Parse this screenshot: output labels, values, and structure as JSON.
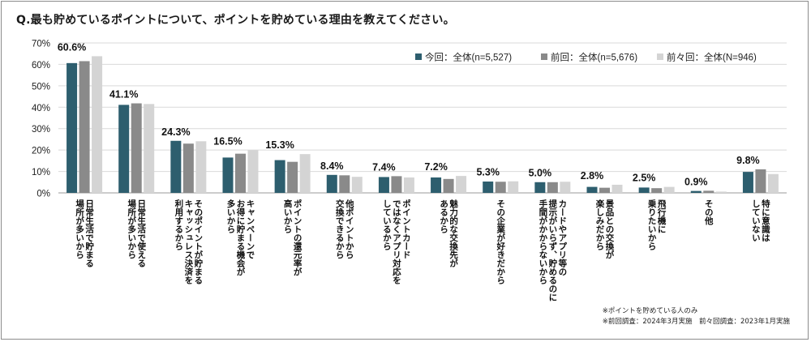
{
  "question": "Q.最も貯めているポイントについて、ポイントを貯めている理由を教えてください。",
  "notes": [
    "※ポイントを貯めている人のみ",
    "※前回調査：2024年3月実施　前々回調査：2023年1月実施"
  ],
  "colors": {
    "current": "#2d5e6e",
    "previous": "#8a8a8a",
    "before_previous": "#d4d4d4"
  },
  "chart_data": {
    "type": "bar",
    "title": "",
    "xlabel": "",
    "ylabel": "",
    "ylim": [
      0,
      70
    ],
    "yticks": [
      "0%",
      "10%",
      "20%",
      "30%",
      "40%",
      "50%",
      "60%",
      "70%"
    ],
    "grid": true,
    "legend_position": "top-right",
    "categories": [
      [
        "日常生活で貯まる",
        "場所が多いから"
      ],
      [
        "日常生活で使える",
        "場所が多いから"
      ],
      [
        "そのポイントが貯まる",
        "キャッシュレス決済を",
        "利用するから"
      ],
      [
        "キャンペーンで",
        "お得に貯まる機会が",
        "多いから"
      ],
      [
        "ポイントの還元率が",
        "高いから"
      ],
      [
        "他ポイントから",
        "交換できるから"
      ],
      [
        "ポイントカード",
        "ではなくアプリ対応を",
        "しているから"
      ],
      [
        "魅力的な交換先が",
        "あるから"
      ],
      [
        "その企業が好きだから"
      ],
      [
        "カードやアプリ等の",
        "提示がいらず、貯めるのに",
        "手間がかからないから"
      ],
      [
        "景品との交換が",
        "楽しみだから"
      ],
      [
        "飛行機に",
        "乗りたいから"
      ],
      [
        "その他"
      ],
      [
        "特に意識は",
        "していない"
      ]
    ],
    "data_labels": [
      "60.6%",
      "41.1%",
      "24.3%",
      "16.5%",
      "15.3%",
      "8.4%",
      "7.4%",
      "7.2%",
      "5.3%",
      "5.0%",
      "2.8%",
      "2.5%",
      "0.9%",
      "9.8%"
    ],
    "series": [
      {
        "name": "今回：全体(n=5,527)",
        "values": [
          60.6,
          41.1,
          24.3,
          16.5,
          15.3,
          8.4,
          7.4,
          7.2,
          5.3,
          5.0,
          2.8,
          2.5,
          0.9,
          9.8
        ]
      },
      {
        "name": "前回：全体(n=5,676)",
        "values": [
          61.5,
          41.8,
          23.0,
          18.3,
          14.5,
          8.2,
          7.8,
          6.5,
          5.2,
          5.0,
          2.4,
          2.2,
          1.0,
          11.0
        ]
      },
      {
        "name": "前々回：全体(N=946)",
        "values": [
          63.8,
          41.5,
          24.1,
          19.9,
          18.1,
          7.5,
          7.2,
          7.9,
          5.4,
          5.2,
          3.8,
          2.8,
          0.6,
          8.8
        ]
      }
    ]
  }
}
